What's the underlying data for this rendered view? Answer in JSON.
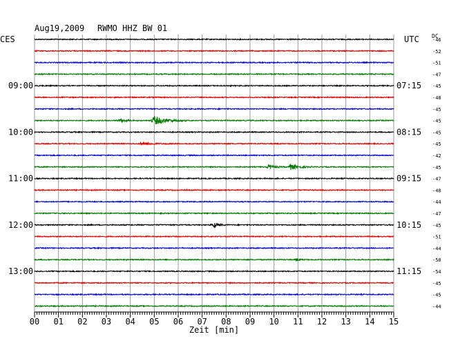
{
  "header": {
    "date": "Aug19,2009",
    "station": "RWMO HHZ BW 01",
    "left_zone": "CES",
    "right_zone": "UTC",
    "dc_label": "DC"
  },
  "chart_data": {
    "type": "line",
    "title": "Aug19,2009   RWMO HHZ BW 01",
    "xlabel": "Zeit [min]",
    "x_ticks": [
      "00",
      "01",
      "02",
      "03",
      "04",
      "05",
      "06",
      "07",
      "08",
      "09",
      "10",
      "11",
      "12",
      "13",
      "14",
      "15"
    ],
    "xlim": [
      0,
      15
    ],
    "grid": true,
    "trace_colors": [
      "#000000",
      "#dd0000",
      "#0000cc",
      "#007700"
    ],
    "left_hour_labels": [
      {
        "row": 4,
        "label": "09:00"
      },
      {
        "row": 8,
        "label": "10:00"
      },
      {
        "row": 12,
        "label": "11:00"
      },
      {
        "row": 16,
        "label": "12:00"
      },
      {
        "row": 20,
        "label": "13:00"
      }
    ],
    "right_hour_labels": [
      {
        "row": 4,
        "label": "07:15"
      },
      {
        "row": 8,
        "label": "08:15"
      },
      {
        "row": 12,
        "label": "09:15"
      },
      {
        "row": 16,
        "label": "10:15"
      },
      {
        "row": 20,
        "label": "11:15"
      }
    ],
    "dc_offsets": [
      -46,
      -52,
      -51,
      -47,
      -45,
      -48,
      -45,
      -45,
      -45,
      -45,
      -42,
      -45,
      -47,
      -48,
      -44,
      -47,
      -45,
      -51,
      -44,
      -50,
      -54,
      -45,
      -45,
      -44
    ],
    "events": [
      {
        "row": 7,
        "minute": 5.0,
        "amplitude": 6,
        "duration": 1.4
      },
      {
        "row": 7,
        "minute": 3.6,
        "amplitude": 2.5,
        "duration": 0.6
      },
      {
        "row": 9,
        "minute": 4.5,
        "amplitude": 1.8,
        "duration": 1.4
      },
      {
        "row": 11,
        "minute": 9.8,
        "amplitude": 3,
        "duration": 0.6
      },
      {
        "row": 11,
        "minute": 10.7,
        "amplitude": 4,
        "duration": 0.9
      },
      {
        "row": 16,
        "minute": 7.5,
        "amplitude": 3.5,
        "duration": 0.5
      },
      {
        "row": 19,
        "minute": 11.0,
        "amplitude": 1.5,
        "duration": 0.4
      }
    ]
  }
}
